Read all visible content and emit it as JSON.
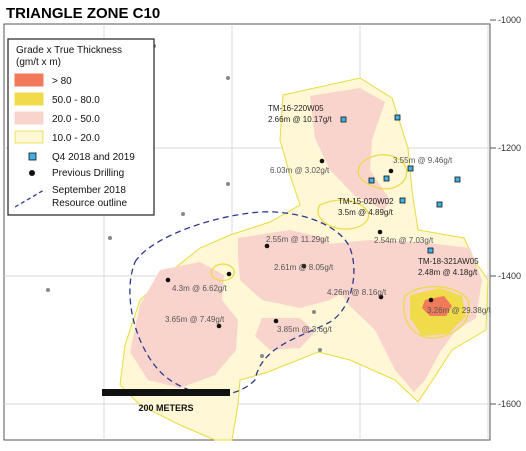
{
  "title": "TRIANGLE ZONE C10",
  "legend": {
    "heading_line1": "Grade x True Thickness",
    "heading_line2": "(gm/t x m)",
    "items": [
      {
        "label": "> 80",
        "color": "#f07a5a"
      },
      {
        "label": "50.0 - 80.0",
        "color": "#f0dc4a"
      },
      {
        "label": "20.0 - 50.0",
        "color": "#f9d4cc"
      },
      {
        "label": "10.0 - 20.0",
        "color": "#fff7d6"
      }
    ],
    "q4_label": "Q4 2018 and 2019",
    "previous_label": "Previous Drilling",
    "resource_line1": "September 2018",
    "resource_line2": "Resource outline"
  },
  "axis_labels": [
    "-1000",
    "-1200",
    "-1400",
    "-1600"
  ],
  "scale_bar_label": "200 METERS",
  "featured_holes": [
    {
      "name": "TM-16-220W05",
      "value": "2.66m @ 10.17g/t"
    },
    {
      "name": "TM-15-020W02",
      "value": "3.5m @ 4.89g/t"
    },
    {
      "name": "TM-18-321AW05",
      "value": "2.48m @ 4.18g/t"
    }
  ],
  "intercepts": [
    "6.03m @ 3.02g/t",
    "3.55m @ 9.46g/t",
    "2.54m @ 7.03g/t",
    "2.55m @ 11.29g/t",
    "2.61m @ 8.05g/t",
    "4.26m @ 8.16g/t",
    "4.3m @ 6.62g/t",
    "3.26m @ 29.38g/t",
    "3.65m @ 7.49g/t",
    "3.85m @ 3.6g/t"
  ],
  "colors": {
    "q4_marker": "#3fb3e6",
    "resource_outline": "#2b3a8c",
    "contour_line": "#e8dc3c",
    "grid_line": "#c8c8c8"
  }
}
